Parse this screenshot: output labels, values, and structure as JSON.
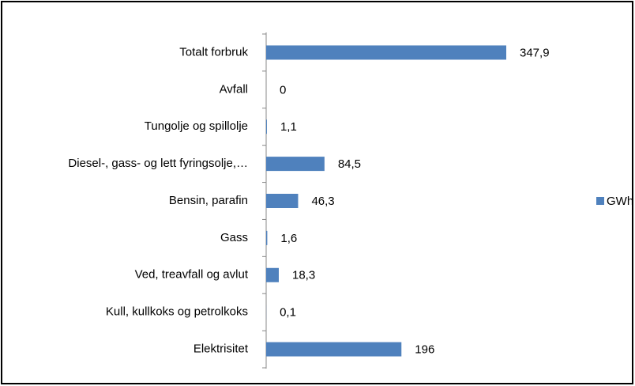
{
  "chart_data": {
    "type": "bar",
    "orientation": "horizontal",
    "categories": [
      "Totalt forbruk",
      "Avfall",
      "Tungolje og spillolje",
      "Diesel-, gass- og lett fyringsolje,…",
      "Bensin, parafin",
      "Gass",
      "Ved, treavfall og avlut",
      "Kull, kullkoks og petrolkoks",
      "Elektrisitet"
    ],
    "series": [
      {
        "name": "GWh",
        "color": "#4f81bd",
        "values": [
          347.9,
          0,
          1.1,
          84.5,
          46.3,
          1.6,
          18.3,
          0.1,
          196
        ],
        "value_labels": [
          "347,9",
          "0",
          "1,1",
          "84,5",
          "46,3",
          "1,6",
          "18,3",
          "0,1",
          "196"
        ]
      }
    ],
    "legend": "right"
  }
}
